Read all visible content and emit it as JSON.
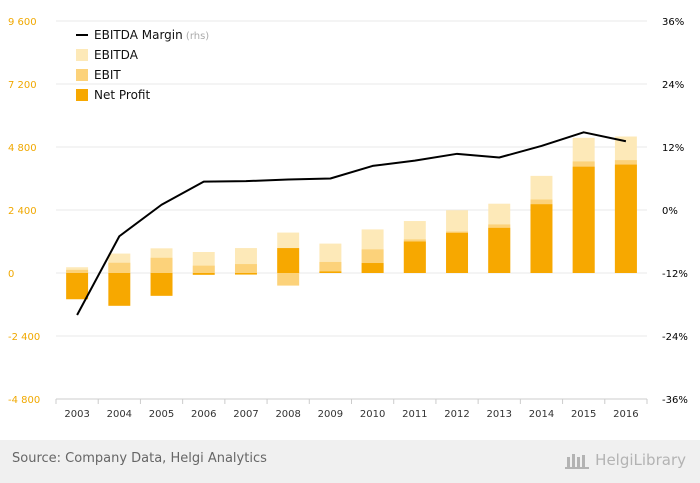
{
  "chart_data": {
    "type": "bar",
    "categories": [
      "2003",
      "2004",
      "2005",
      "2006",
      "2007",
      "2008",
      "2009",
      "2010",
      "2011",
      "2012",
      "2013",
      "2014",
      "2015",
      "2016"
    ],
    "series": [
      {
        "name": "EBITDA",
        "type": "bar",
        "axis": "left",
        "color": "#fde9b8",
        "values": [
          220,
          740,
          940,
          800,
          950,
          1540,
          1120,
          1660,
          1980,
          2390,
          2640,
          3700,
          5150,
          5200
        ]
      },
      {
        "name": "EBIT",
        "type": "bar",
        "axis": "left",
        "color": "#fcd27a",
        "values": [
          120,
          390,
          580,
          280,
          340,
          -480,
          420,
          900,
          1280,
          1580,
          1850,
          2800,
          4250,
          4300
        ]
      },
      {
        "name": "Net Profit",
        "type": "bar",
        "axis": "left",
        "color": "#f7a800",
        "values": [
          -1000,
          -1250,
          -870,
          -70,
          -60,
          950,
          60,
          380,
          1200,
          1530,
          1720,
          2620,
          4050,
          4130
        ]
      },
      {
        "name": "EBITDA Margin",
        "type": "line",
        "axis": "right",
        "color": "#000000",
        "values": [
          -20.0,
          -5.0,
          1.0,
          5.4,
          5.5,
          5.8,
          6.0,
          8.4,
          9.4,
          10.7,
          10.0,
          12.2,
          14.8,
          13.1
        ]
      }
    ],
    "legend_suffix": "(rhs)",
    "yaxis_left": {
      "ticks": [
        -4800,
        -2400,
        0,
        2400,
        4800,
        7200,
        9600
      ],
      "labels": [
        "-4 800",
        "-2 400",
        "0",
        "2 400",
        "4 800",
        "7 200",
        "9 600"
      ],
      "range": [
        -4800,
        9600
      ]
    },
    "yaxis_right": {
      "ticks": [
        -36,
        -24,
        -12,
        0,
        12,
        24,
        36
      ],
      "labels": [
        "-36%",
        "-24%",
        "-12%",
        "0%",
        "12%",
        "24%",
        "36%"
      ],
      "range": [
        -36,
        36
      ]
    },
    "grid": true,
    "legend_position": "top-left"
  },
  "footer": {
    "source": "Source: Company Data, Helgi Analytics",
    "brand": "HelgiLibrary"
  },
  "colors": {
    "left_axis_labels": "#f0a800",
    "right_axis_labels": "#000000",
    "grid": "#e8e8e8",
    "footer_bg": "#f0f0f0"
  }
}
